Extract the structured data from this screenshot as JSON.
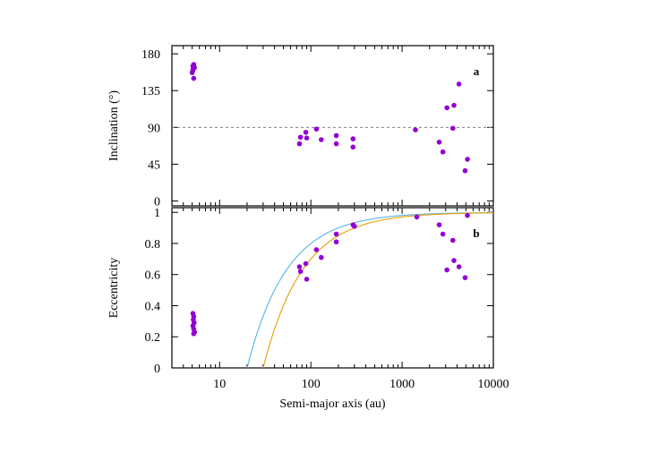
{
  "chart_data": [
    {
      "type": "scatter",
      "panel_letter": "a",
      "xlabel": "",
      "ylabel": "Inclination (°)",
      "xscale": "log",
      "xlim": [
        3,
        10000
      ],
      "ylim": [
        -6,
        190
      ],
      "yticks": [
        0,
        45,
        90,
        135,
        180
      ],
      "yticklabels": [
        "0",
        "45",
        "90",
        "135",
        "180"
      ],
      "reference_line": {
        "y": 90,
        "style": "dashed",
        "color": "#808080"
      },
      "marker_color": "#9400d3",
      "series": [
        {
          "points": [
            [
              5.1,
              165
            ],
            [
              5.2,
              167
            ],
            [
              5.15,
              162
            ],
            [
              5.25,
              164
            ],
            [
              5.1,
              160
            ],
            [
              5.0,
              157
            ],
            [
              5.3,
              163
            ],
            [
              5.2,
              150
            ],
            [
              75,
              70
            ],
            [
              77,
              78
            ],
            [
              88,
              84
            ],
            [
              90,
              77
            ],
            [
              115,
              88
            ],
            [
              130,
              75
            ],
            [
              190,
              80
            ],
            [
              190,
              70
            ],
            [
              290,
              76
            ],
            [
              290,
              66
            ],
            [
              1400,
              87
            ],
            [
              2550,
              72
            ],
            [
              2800,
              60
            ],
            [
              3100,
              114
            ],
            [
              3600,
              89
            ],
            [
              3700,
              117
            ],
            [
              4200,
              143
            ],
            [
              4900,
              37
            ],
            [
              5200,
              51
            ]
          ]
        }
      ]
    },
    {
      "type": "scatter",
      "panel_letter": "b",
      "xlabel": "Semi-major axis (au)",
      "ylabel": "Eccentricity",
      "xscale": "log",
      "xlim": [
        3,
        10000
      ],
      "ylim": [
        0,
        1.03
      ],
      "xticks": [
        10,
        100,
        1000,
        10000
      ],
      "xticklabels": [
        "10",
        "100",
        "1000",
        "10000"
      ],
      "yticks": [
        0,
        0.2,
        0.4,
        0.6,
        0.8,
        1
      ],
      "yticklabels": [
        "0",
        "0.2",
        "0.4",
        "0.6",
        "0.8",
        "1"
      ],
      "marker_color": "#9400d3",
      "curves": [
        {
          "color": "#56b4e9",
          "perihelion": 20
        },
        {
          "color": "#e69f00",
          "perihelion": 30
        }
      ],
      "series": [
        {
          "points": [
            [
              5.1,
              0.35
            ],
            [
              5.2,
              0.33
            ],
            [
              5.15,
              0.31
            ],
            [
              5.25,
              0.29
            ],
            [
              5.1,
              0.27
            ],
            [
              5.2,
              0.25
            ],
            [
              5.3,
              0.23
            ],
            [
              5.2,
              0.22
            ],
            [
              75,
              0.65
            ],
            [
              77,
              0.62
            ],
            [
              88,
              0.67
            ],
            [
              90,
              0.57
            ],
            [
              115,
              0.76
            ],
            [
              130,
              0.71
            ],
            [
              190,
              0.86
            ],
            [
              190,
              0.81
            ],
            [
              290,
              0.92
            ],
            [
              300,
              0.91
            ],
            [
              1450,
              0.97
            ],
            [
              2550,
              0.92
            ],
            [
              2800,
              0.86
            ],
            [
              3100,
              0.63
            ],
            [
              3600,
              0.82
            ],
            [
              3700,
              0.69
            ],
            [
              4200,
              0.65
            ],
            [
              4900,
              0.58
            ],
            [
              5200,
              0.98
            ]
          ]
        }
      ]
    }
  ]
}
